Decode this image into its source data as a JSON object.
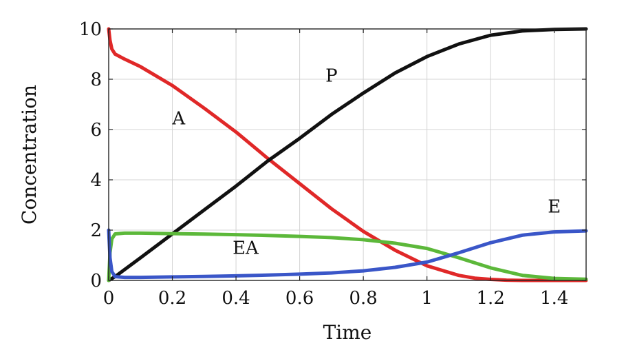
{
  "chart_data": {
    "type": "line",
    "title": "",
    "xlabel": "Time",
    "ylabel": "Concentration",
    "xlim": [
      0,
      1.5
    ],
    "ylim": [
      0,
      10
    ],
    "xticks": [
      0,
      0.2,
      0.4,
      0.6,
      0.8,
      1,
      1.2,
      1.4
    ],
    "xtick_labels": [
      "0",
      "0.2",
      "0.4",
      "0.6",
      "0.8",
      "1",
      "1.2",
      "1.4"
    ],
    "yticks": [
      0,
      2,
      4,
      6,
      8,
      10
    ],
    "ytick_labels": [
      "0",
      "2",
      "4",
      "6",
      "8",
      "10"
    ],
    "grid": true,
    "legend": "none",
    "series": [
      {
        "name": "A",
        "color": "#e02828",
        "x": [
          0,
          0.004,
          0.01,
          0.02,
          0.05,
          0.1,
          0.2,
          0.3,
          0.4,
          0.5,
          0.6,
          0.7,
          0.8,
          0.9,
          1.0,
          1.1,
          1.15,
          1.2,
          1.25,
          1.3,
          1.4,
          1.5
        ],
        "y": [
          10,
          9.55,
          9.2,
          9.0,
          8.8,
          8.5,
          7.75,
          6.85,
          5.9,
          4.85,
          3.85,
          2.85,
          1.95,
          1.2,
          0.58,
          0.2,
          0.09,
          0.04,
          0.01,
          0.0,
          0.0,
          0.0
        ]
      },
      {
        "name": "P",
        "color": "#111111",
        "x": [
          0,
          0.02,
          0.1,
          0.2,
          0.3,
          0.4,
          0.5,
          0.6,
          0.7,
          0.8,
          0.9,
          1.0,
          1.1,
          1.2,
          1.3,
          1.4,
          1.5
        ],
        "y": [
          0,
          0.15,
          0.9,
          1.85,
          2.8,
          3.75,
          4.75,
          5.65,
          6.6,
          7.45,
          8.25,
          8.9,
          9.4,
          9.75,
          9.92,
          9.98,
          10.0
        ]
      },
      {
        "name": "EA",
        "color": "#5cb83a",
        "x": [
          0,
          0.004,
          0.01,
          0.02,
          0.05,
          0.1,
          0.2,
          0.3,
          0.4,
          0.5,
          0.6,
          0.7,
          0.8,
          0.9,
          1.0,
          1.1,
          1.2,
          1.3,
          1.4,
          1.5
        ],
        "y": [
          0,
          1.1,
          1.65,
          1.85,
          1.88,
          1.88,
          1.86,
          1.84,
          1.82,
          1.79,
          1.75,
          1.7,
          1.62,
          1.48,
          1.27,
          0.9,
          0.5,
          0.2,
          0.08,
          0.05
        ]
      },
      {
        "name": "E",
        "color": "#3a56c8",
        "x": [
          0,
          0.004,
          0.01,
          0.02,
          0.05,
          0.1,
          0.2,
          0.3,
          0.4,
          0.5,
          0.6,
          0.7,
          0.8,
          0.9,
          1.0,
          1.1,
          1.2,
          1.3,
          1.4,
          1.5
        ],
        "y": [
          2.0,
          0.9,
          0.35,
          0.15,
          0.12,
          0.12,
          0.14,
          0.16,
          0.18,
          0.21,
          0.25,
          0.3,
          0.38,
          0.52,
          0.73,
          1.1,
          1.5,
          1.8,
          1.93,
          1.97
        ]
      }
    ],
    "annotations": [
      {
        "text": "A",
        "x": 0.22,
        "y": 6.2
      },
      {
        "text": "P",
        "x": 0.7,
        "y": 7.9
      },
      {
        "text": "EA",
        "x": 0.43,
        "y": 1.05
      },
      {
        "text": "E",
        "x": 1.4,
        "y": 2.7
      }
    ]
  }
}
